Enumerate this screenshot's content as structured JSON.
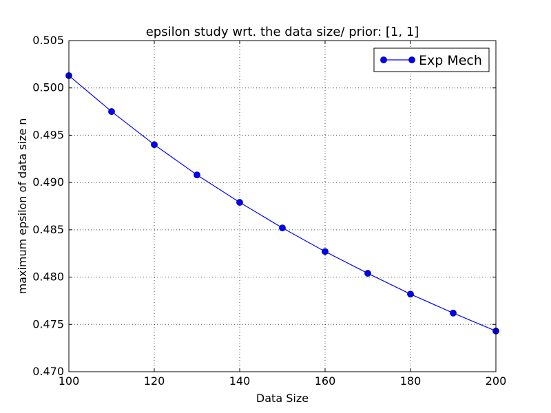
{
  "chart_data": {
    "type": "line",
    "title": "epsilon study wrt. the data size/ prior: [1, 1]",
    "xlabel": "Data Size",
    "ylabel": "maximum epsilon of data size n",
    "xlim": [
      100,
      200
    ],
    "ylim": [
      0.47,
      0.505
    ],
    "grid": true,
    "legend_position": "top-right",
    "x_ticks": [
      100,
      120,
      140,
      160,
      180,
      200
    ],
    "x_tick_labels": [
      "100",
      "120",
      "140",
      "160",
      "180",
      "200"
    ],
    "y_ticks": [
      0.47,
      0.475,
      0.48,
      0.485,
      0.49,
      0.495,
      0.5,
      0.505
    ],
    "y_tick_labels": [
      "0.470",
      "0.475",
      "0.480",
      "0.485",
      "0.490",
      "0.495",
      "0.500",
      "0.505"
    ],
    "x": [
      100,
      110,
      120,
      130,
      140,
      150,
      160,
      170,
      180,
      190,
      200
    ],
    "series": [
      {
        "name": "Exp Mech",
        "color": "#0000ff",
        "marker": "circle",
        "values": [
          0.5013,
          0.4975,
          0.494,
          0.4908,
          0.4879,
          0.4852,
          0.4827,
          0.4804,
          0.4782,
          0.4762,
          0.4743
        ]
      }
    ]
  }
}
